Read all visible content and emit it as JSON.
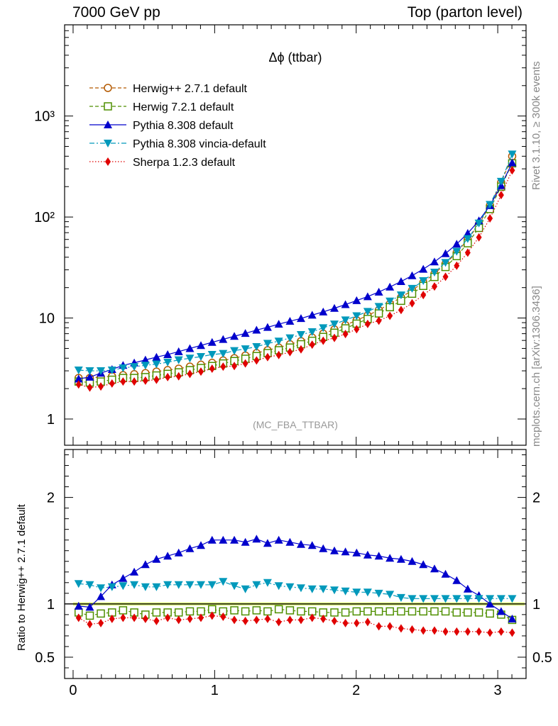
{
  "header": {
    "left": "7000 GeV pp",
    "right": "Top (parton level)"
  },
  "side_labels": {
    "rivet": "Rivet 3.1.10, ≥ 300k events",
    "mcplots": "mcplots.cern.ch [arXiv:1306.3436]"
  },
  "plot": {
    "title": "Δϕ (ttbar)",
    "watermark": "(MC_FBA_TTBAR)"
  },
  "ratio": {
    "ylabel": "Ratio to Herwig++ 2.7.1 default"
  },
  "chart_data": [
    {
      "type": "line",
      "title": "Δϕ (ttbar)",
      "yscale": "log",
      "xlim": [
        -0.06,
        3.2
      ],
      "ylim": [
        0.55,
        8000
      ],
      "yticklabels": [
        "1",
        "10",
        "10²",
        "10³"
      ],
      "legend_position": "top-left",
      "x": [
        0.039,
        0.118,
        0.196,
        0.275,
        0.353,
        0.432,
        0.511,
        0.589,
        0.668,
        0.746,
        0.825,
        0.903,
        0.982,
        1.06,
        1.139,
        1.217,
        1.296,
        1.374,
        1.453,
        1.532,
        1.61,
        1.689,
        1.767,
        1.846,
        1.924,
        2.003,
        2.081,
        2.16,
        2.238,
        2.317,
        2.395,
        2.474,
        2.553,
        2.631,
        2.71,
        2.788,
        2.867,
        2.945,
        3.024,
        3.102
      ],
      "series": [
        {
          "name": "Herwig++ 2.7.1 default",
          "color": "#b35900",
          "marker": "open-circle",
          "line": "dashed",
          "values": [
            2.55,
            2.55,
            2.6,
            2.65,
            2.72,
            2.78,
            2.85,
            2.95,
            3.05,
            3.15,
            3.3,
            3.45,
            3.6,
            3.8,
            4.0,
            4.25,
            4.5,
            4.8,
            5.1,
            5.5,
            5.9,
            6.4,
            7.0,
            7.7,
            8.5,
            9.5,
            10.6,
            12.0,
            13.8,
            16.0,
            18.8,
            22.5,
            27.5,
            34.5,
            44.5,
            60,
            85,
            130,
            220,
            400
          ]
        },
        {
          "name": "Herwig 7.2.1 default",
          "color": "#4f8f00",
          "marker": "open-square",
          "line": "dashed",
          "values": [
            2.35,
            2.3,
            2.35,
            2.45,
            2.55,
            2.55,
            2.6,
            2.7,
            2.8,
            2.9,
            3.05,
            3.2,
            3.35,
            3.55,
            3.75,
            3.95,
            4.2,
            4.5,
            4.8,
            5.1,
            5.5,
            5.95,
            6.5,
            7.15,
            7.9,
            8.8,
            9.8,
            11.1,
            12.8,
            14.8,
            17.4,
            20.8,
            25.5,
            32,
            41,
            55,
            78,
            120,
            200,
            340
          ]
        },
        {
          "name": "Pythia 8.308 default",
          "color": "#0000cc",
          "marker": "filled-triangle-up",
          "line": "solid",
          "values": [
            2.5,
            2.6,
            2.85,
            3.1,
            3.4,
            3.6,
            3.85,
            4.1,
            4.35,
            4.65,
            5.0,
            5.35,
            5.75,
            6.15,
            6.6,
            7.05,
            7.6,
            8.1,
            8.7,
            9.3,
            9.9,
            10.7,
            11.5,
            12.5,
            13.6,
            14.9,
            16.3,
            18.1,
            20.3,
            23.0,
            26.3,
            30.5,
            36,
            43.5,
            54,
            69,
            92,
            130,
            205,
            345
          ]
        },
        {
          "name": "Pythia 8.308 vincia-default",
          "color": "#0099bb",
          "marker": "filled-triangle-down",
          "line": "dashdot",
          "values": [
            3.05,
            3.0,
            3.0,
            3.05,
            3.2,
            3.3,
            3.4,
            3.5,
            3.65,
            3.85,
            4.0,
            4.15,
            4.35,
            4.45,
            4.75,
            4.95,
            5.2,
            5.6,
            5.9,
            6.35,
            6.85,
            7.3,
            8.0,
            8.7,
            9.55,
            10.5,
            11.6,
            13.0,
            14.7,
            16.9,
            19.6,
            23.4,
            28.4,
            35.4,
            45.6,
            61,
            87,
            133,
            225,
            420
          ]
        },
        {
          "name": "Sherpa 1.2.3 default",
          "color": "#e00000",
          "marker": "filled-diamond",
          "line": "dotted",
          "values": [
            2.2,
            2.05,
            2.1,
            2.25,
            2.35,
            2.35,
            2.4,
            2.45,
            2.6,
            2.65,
            2.8,
            2.95,
            3.15,
            3.3,
            3.35,
            3.55,
            3.8,
            4.1,
            4.3,
            4.6,
            4.9,
            5.45,
            5.95,
            6.35,
            6.95,
            7.75,
            8.75,
            9.4,
            10.5,
            12.0,
            14.0,
            16.9,
            20.5,
            25.6,
            33.0,
            44.4,
            63,
            97,
            165,
            290
          ]
        }
      ]
    },
    {
      "type": "line",
      "ylabel": "Ratio to Herwig++ 2.7.1 default",
      "xlim": [
        -0.06,
        3.2
      ],
      "ylim": [
        0.3,
        2.45
      ],
      "xticks": [
        0,
        1,
        2,
        3
      ],
      "yticks": [
        0.5,
        1,
        2
      ],
      "x": [
        0.039,
        0.118,
        0.196,
        0.275,
        0.353,
        0.432,
        0.511,
        0.589,
        0.668,
        0.746,
        0.825,
        0.903,
        0.982,
        1.06,
        1.139,
        1.217,
        1.296,
        1.374,
        1.453,
        1.532,
        1.61,
        1.689,
        1.767,
        1.846,
        1.924,
        2.003,
        2.081,
        2.16,
        2.238,
        2.317,
        2.395,
        2.474,
        2.553,
        2.631,
        2.71,
        2.788,
        2.867,
        2.945,
        3.024,
        3.102
      ],
      "series": [
        {
          "name": "Herwig 7.2.1 default",
          "color": "#4f8f00",
          "marker": "open-square",
          "line": "dashed",
          "values": [
            0.92,
            0.89,
            0.91,
            0.92,
            0.94,
            0.92,
            0.9,
            0.92,
            0.92,
            0.92,
            0.93,
            0.93,
            0.95,
            0.93,
            0.94,
            0.93,
            0.94,
            0.93,
            0.95,
            0.94,
            0.93,
            0.93,
            0.92,
            0.92,
            0.92,
            0.93,
            0.93,
            0.93,
            0.93,
            0.93,
            0.93,
            0.93,
            0.93,
            0.93,
            0.92,
            0.92,
            0.92,
            0.91,
            0.9,
            0.85
          ]
        },
        {
          "name": "Pythia 8.308 default",
          "color": "#0000cc",
          "marker": "filled-triangle-up",
          "line": "solid",
          "values": [
            0.98,
            0.97,
            1.07,
            1.18,
            1.24,
            1.3,
            1.37,
            1.42,
            1.45,
            1.48,
            1.52,
            1.55,
            1.6,
            1.6,
            1.6,
            1.58,
            1.61,
            1.57,
            1.6,
            1.58,
            1.56,
            1.55,
            1.52,
            1.5,
            1.49,
            1.48,
            1.46,
            1.45,
            1.43,
            1.42,
            1.4,
            1.37,
            1.33,
            1.28,
            1.22,
            1.14,
            1.08,
            1.0,
            0.93,
            0.86
          ]
        },
        {
          "name": "Pythia 8.308 vincia-default",
          "color": "#0099bb",
          "marker": "filled-triangle-down",
          "line": "dashdot",
          "values": [
            1.19,
            1.18,
            1.15,
            1.16,
            1.17,
            1.18,
            1.16,
            1.16,
            1.18,
            1.18,
            1.18,
            1.18,
            1.18,
            1.21,
            1.17,
            1.14,
            1.18,
            1.2,
            1.17,
            1.16,
            1.15,
            1.14,
            1.14,
            1.13,
            1.12,
            1.11,
            1.11,
            1.1,
            1.09,
            1.06,
            1.05,
            1.05,
            1.05,
            1.05,
            1.05,
            1.05,
            1.05,
            1.05,
            1.05,
            1.05
          ]
        },
        {
          "name": "Sherpa 1.2.3 default",
          "color": "#e00000",
          "marker": "filled-diamond",
          "line": "dotted",
          "values": [
            0.87,
            0.81,
            0.82,
            0.86,
            0.87,
            0.87,
            0.86,
            0.84,
            0.87,
            0.85,
            0.86,
            0.87,
            0.89,
            0.88,
            0.85,
            0.84,
            0.85,
            0.86,
            0.83,
            0.85,
            0.85,
            0.87,
            0.86,
            0.84,
            0.82,
            0.82,
            0.83,
            0.79,
            0.79,
            0.77,
            0.76,
            0.75,
            0.75,
            0.74,
            0.74,
            0.74,
            0.74,
            0.73,
            0.74,
            0.73
          ]
        }
      ]
    }
  ]
}
